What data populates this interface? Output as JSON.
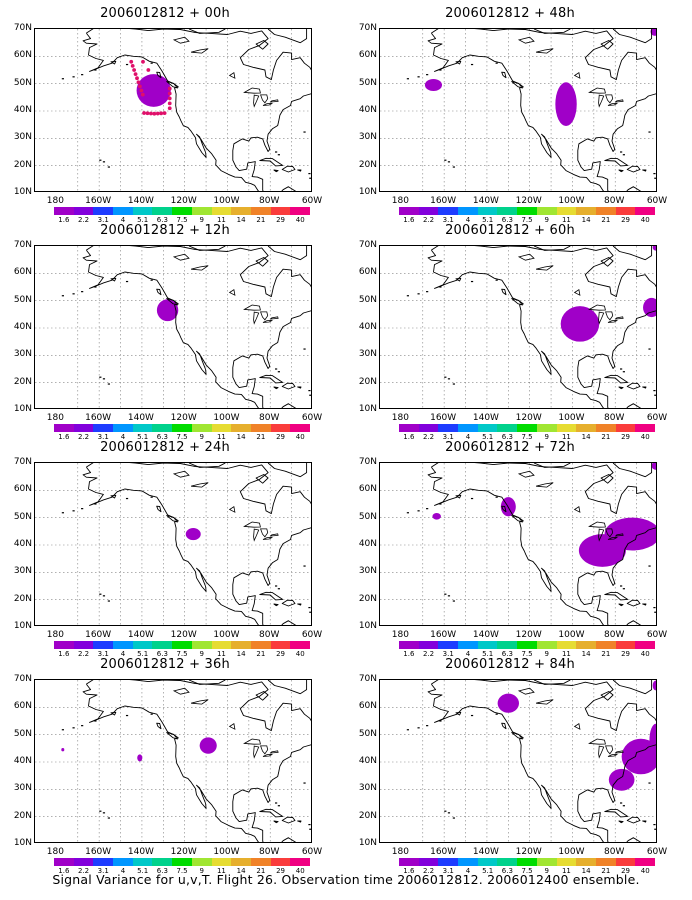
{
  "caption": "Signal Variance for u,v,T. Flight 26. Observation time 2006012812. 2006012400 ensemble.",
  "lat_labels": [
    "70N",
    "60N",
    "50N",
    "40N",
    "30N",
    "20N",
    "10N"
  ],
  "lon_labels": [
    "180",
    "160W",
    "140W",
    "120W",
    "100W",
    "80W",
    "60W"
  ],
  "colorbar": {
    "labels": [
      "1.6",
      "2.2",
      "3.1",
      "4",
      "5.1",
      "6.3",
      "7.5",
      "9",
      "11",
      "14",
      "21",
      "29",
      "40"
    ],
    "colors": [
      "#a000c8",
      "#8200dc",
      "#1e3cff",
      "#0096ff",
      "#00c8c8",
      "#00d28c",
      "#00dc00",
      "#a0e632",
      "#e6dc32",
      "#e6af2d",
      "#f08228",
      "#fa3c3c",
      "#f00082"
    ]
  },
  "map_extent": {
    "lon": [
      -190,
      -60
    ],
    "lat": [
      10,
      70
    ]
  },
  "panels": [
    {
      "title": "2006012812 + 00h",
      "blobs": [
        {
          "lon": -134.5,
          "lat": 47.5,
          "rx": 8,
          "ry": 6
        }
      ],
      "dots": true
    },
    {
      "title": "2006012812 + 12h",
      "blobs": [
        {
          "lon": -128,
          "lat": 46.5,
          "rx": 5,
          "ry": 4
        }
      ],
      "dots": false
    },
    {
      "title": "2006012812 + 24h",
      "blobs": [
        {
          "lon": -116,
          "lat": 44,
          "rx": 3.5,
          "ry": 2.2
        }
      ],
      "dots": false
    },
    {
      "title": "2006012812 + 36h",
      "blobs": [
        {
          "lon": -109,
          "lat": 46,
          "rx": 4,
          "ry": 3
        },
        {
          "lon": -141,
          "lat": 41.5,
          "rx": 1.2,
          "ry": 1.3
        },
        {
          "lon": -177,
          "lat": 44.5,
          "rx": 0.7,
          "ry": 0.6
        }
      ],
      "dots": false
    },
    {
      "title": "2006012812 + 48h",
      "blobs": [
        {
          "lon": -103,
          "lat": 42.5,
          "rx": 5,
          "ry": 8
        },
        {
          "lon": -165,
          "lat": 49.5,
          "rx": 4,
          "ry": 2.2
        },
        {
          "lon": -61.5,
          "lat": 69,
          "rx": 2,
          "ry": 1.5
        }
      ],
      "dots": false
    },
    {
      "title": "2006012812 + 60h",
      "blobs": [
        {
          "lon": -96.5,
          "lat": 41.5,
          "rx": 9,
          "ry": 6.5
        },
        {
          "lon": -63,
          "lat": 47.5,
          "rx": 4,
          "ry": 3.5
        },
        {
          "lon": -61,
          "lat": 69.5,
          "rx": 1.5,
          "ry": 1.2
        }
      ],
      "dots": false
    },
    {
      "title": "2006012812 + 72h",
      "blobs": [
        {
          "lon": -86,
          "lat": 38,
          "rx": 11,
          "ry": 6
        },
        {
          "lon": -72,
          "lat": 44,
          "rx": 13,
          "ry": 6
        },
        {
          "lon": -130,
          "lat": 54,
          "rx": 3.5,
          "ry": 3.5
        },
        {
          "lon": -163.5,
          "lat": 50.5,
          "rx": 2,
          "ry": 1.2
        },
        {
          "lon": -61,
          "lat": 69,
          "rx": 2,
          "ry": 1.5
        }
      ],
      "dots": false
    },
    {
      "title": "2006012812 + 84h",
      "blobs": [
        {
          "lon": -68,
          "lat": 42,
          "rx": 9,
          "ry": 6.5
        },
        {
          "lon": -77,
          "lat": 33.5,
          "rx": 6,
          "ry": 4
        },
        {
          "lon": -61,
          "lat": 48,
          "rx": 3,
          "ry": 6
        },
        {
          "lon": -130,
          "lat": 61.5,
          "rx": 5,
          "ry": 3.5
        },
        {
          "lon": -61,
          "lat": 68,
          "rx": 1.5,
          "ry": 1.8
        }
      ],
      "dots": false
    }
  ]
}
